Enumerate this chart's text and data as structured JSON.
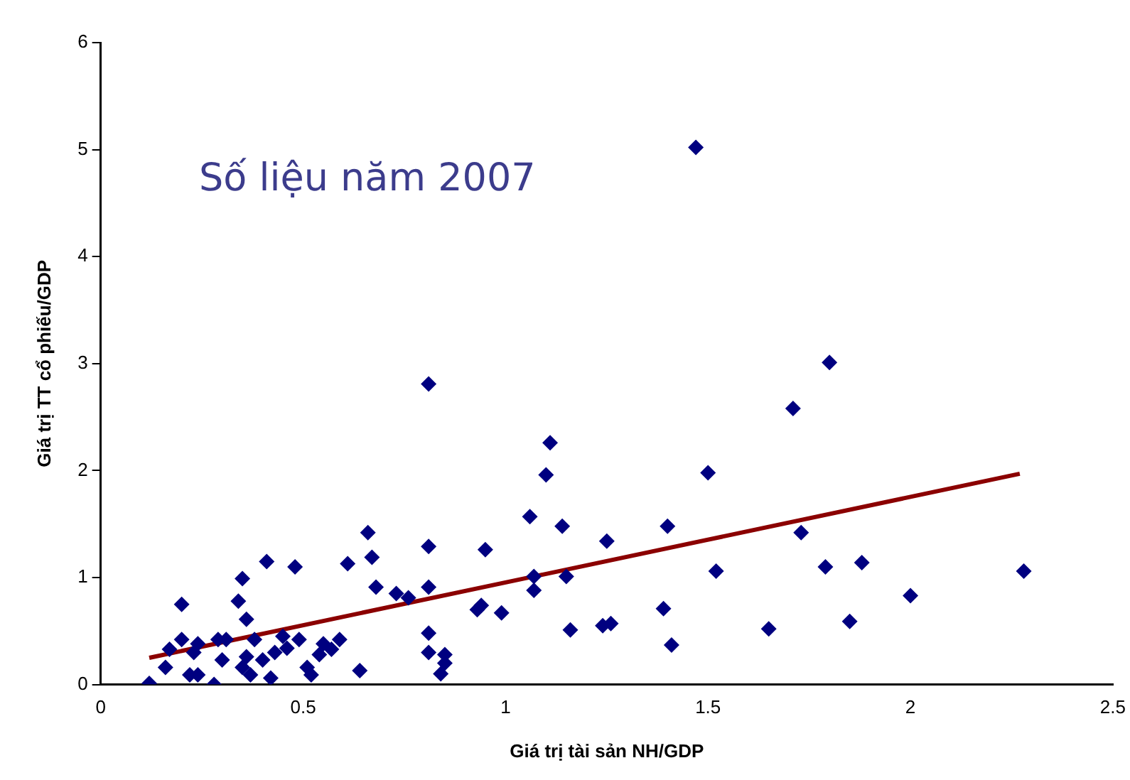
{
  "chart_data": {
    "type": "scatter",
    "xlabel": "Giá trị tài sản NH/GDP",
    "ylabel": "Giá trị TT cổ phiếu/GDP",
    "annotations": [
      "Số liệu năm 2007"
    ],
    "xlim": [
      0,
      2.5
    ],
    "xticks": [
      0,
      0.5,
      1,
      1.5,
      2,
      2.5
    ],
    "ylim": [
      0,
      6
    ],
    "yticks": [
      0,
      1,
      2,
      3,
      4,
      5,
      6
    ],
    "grid": false,
    "legend": false,
    "marker": "diamond",
    "series": [
      {
        "type": "scatter",
        "color": "#000080",
        "x": [
          0.12,
          0.16,
          0.2,
          0.2,
          0.17,
          0.22,
          0.24,
          0.24,
          0.23,
          0.28,
          0.3,
          0.29,
          0.31,
          0.34,
          0.35,
          0.36,
          0.36,
          0.35,
          0.37,
          0.38,
          0.4,
          0.41,
          0.42,
          0.43,
          0.45,
          0.46,
          0.48,
          0.49,
          0.51,
          0.52,
          0.55,
          0.54,
          0.57,
          0.59,
          0.61,
          0.64,
          0.66,
          0.67,
          0.68,
          0.73,
          0.76,
          0.81,
          0.81,
          0.81,
          0.81,
          0.85,
          0.85,
          0.84,
          0.93,
          0.81,
          0.94,
          0.95,
          0.99,
          1.06,
          1.11,
          1.1,
          1.14,
          1.07,
          1.07,
          1.15,
          1.16,
          1.25,
          1.24,
          1.26,
          1.4,
          1.39,
          1.41,
          1.5,
          1.52,
          1.65,
          1.73,
          1.71,
          1.79,
          1.8,
          1.88,
          2.0,
          1.85,
          2.28,
          1.47
        ],
        "values": [
          0.01,
          0.16,
          0.75,
          0.42,
          0.33,
          0.09,
          0.09,
          0.38,
          0.3,
          0.0,
          0.23,
          0.42,
          0.42,
          0.78,
          0.99,
          0.61,
          0.26,
          0.16,
          0.09,
          0.42,
          0.23,
          1.15,
          0.06,
          0.3,
          0.45,
          0.34,
          1.1,
          0.42,
          0.16,
          0.09,
          0.38,
          0.28,
          0.33,
          0.42,
          1.13,
          0.13,
          1.42,
          1.19,
          0.91,
          0.85,
          0.81,
          1.29,
          0.91,
          0.48,
          0.3,
          0.28,
          0.2,
          0.1,
          0.7,
          2.81,
          0.74,
          1.26,
          0.67,
          1.57,
          2.26,
          1.96,
          1.48,
          1.01,
          0.88,
          1.01,
          0.51,
          1.34,
          0.55,
          0.57,
          1.48,
          0.71,
          0.37,
          1.98,
          1.06,
          0.52,
          1.42,
          2.58,
          1.1,
          3.01,
          1.14,
          0.83,
          0.59,
          1.06,
          5.02
        ]
      },
      {
        "type": "line",
        "color": "#8b0000",
        "x": [
          0.12,
          2.27
        ],
        "values": [
          0.25,
          1.97
        ],
        "marker": "none",
        "line_style": "solid"
      }
    ]
  }
}
